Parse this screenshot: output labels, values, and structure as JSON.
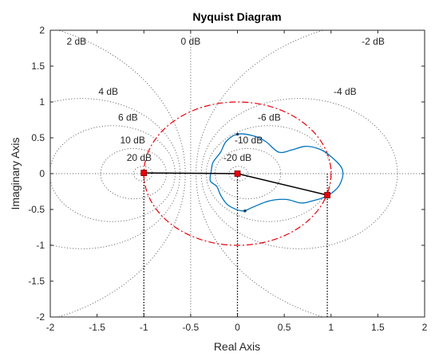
{
  "chart_data": {
    "type": "line",
    "title": "Nyquist Diagram",
    "xlabel": "Real Axis",
    "ylabel": "Imaginary Axis",
    "xlim": [
      -2,
      2
    ],
    "ylim": [
      -2,
      2
    ],
    "xticks": [
      "-2",
      "-1.5",
      "-1",
      "-0.5",
      "0",
      "0.5",
      "1",
      "1.5",
      "2"
    ],
    "yticks": [
      "2",
      "1.5",
      "1",
      "0.5",
      "0",
      "-0.5",
      "-1",
      "-1.5",
      "-2"
    ],
    "grid": "M-circles (dotted)",
    "db_labels": [
      {
        "text": "0 dB",
        "x": -0.5,
        "y": 1.8
      },
      {
        "text": "-2 dB",
        "x": 1.45,
        "y": 1.8
      },
      {
        "text": "2 dB",
        "x": -1.72,
        "y": 1.8
      },
      {
        "text": "-4 dB",
        "x": 1.15,
        "y": 1.1
      },
      {
        "text": "4 dB",
        "x": -1.38,
        "y": 1.1
      },
      {
        "text": "-6 dB",
        "x": 0.34,
        "y": 0.74
      },
      {
        "text": "6 dB",
        "x": -1.17,
        "y": 0.74
      },
      {
        "text": "-10 dB",
        "x": 0.12,
        "y": 0.42
      },
      {
        "text": "10 dB",
        "x": -1.12,
        "y": 0.42
      },
      {
        "text": "-20 dB",
        "x": 0.0,
        "y": 0.18
      },
      {
        "text": "20 dB",
        "x": -1.05,
        "y": 0.18
      }
    ],
    "m_circles_db": [
      -20,
      -10,
      -6,
      -4,
      -2,
      2,
      4,
      6,
      10,
      20
    ],
    "unit_circle": {
      "center": [
        0,
        0
      ],
      "radius": 1,
      "color": "#e8000b",
      "style": "dash-dot"
    },
    "nyquist_curve": {
      "color": "#0072bd",
      "points": [
        [
          0.0,
          0.55
        ],
        [
          0.16,
          0.53
        ],
        [
          0.3,
          0.45
        ],
        [
          0.44,
          0.3
        ],
        [
          0.58,
          0.33
        ],
        [
          0.72,
          0.38
        ],
        [
          0.86,
          0.35
        ],
        [
          0.98,
          0.26
        ],
        [
          1.12,
          0.06
        ],
        [
          1.09,
          -0.16
        ],
        [
          0.96,
          -0.31
        ],
        [
          0.8,
          -0.38
        ],
        [
          0.68,
          -0.41
        ],
        [
          0.52,
          -0.36
        ],
        [
          0.34,
          -0.38
        ],
        [
          0.16,
          -0.47
        ],
        [
          0.05,
          -0.52
        ],
        [
          -0.1,
          -0.44
        ],
        [
          -0.18,
          -0.3
        ],
        [
          -0.22,
          -0.18
        ],
        [
          -0.29,
          -0.1
        ],
        [
          -0.28,
          0.04
        ],
        [
          -0.26,
          0.16
        ],
        [
          -0.18,
          0.3
        ],
        [
          -0.12,
          0.45
        ],
        [
          0.0,
          0.55
        ]
      ]
    },
    "markers": {
      "color": "#e8000b",
      "points": [
        [
          -1.0,
          0.01
        ],
        [
          0.0,
          0.0
        ],
        [
          0.96,
          -0.3
        ]
      ]
    },
    "vector_path": {
      "color": "#000000",
      "points": [
        [
          -1.0,
          0.01
        ],
        [
          0.0,
          0.0
        ],
        [
          0.96,
          -0.3
        ]
      ]
    },
    "marker_drops": [
      -1.0,
      0.0,
      0.96
    ],
    "small_dots": [
      [
        0.0,
        0.55
      ],
      [
        0.08,
        -0.52
      ]
    ]
  }
}
